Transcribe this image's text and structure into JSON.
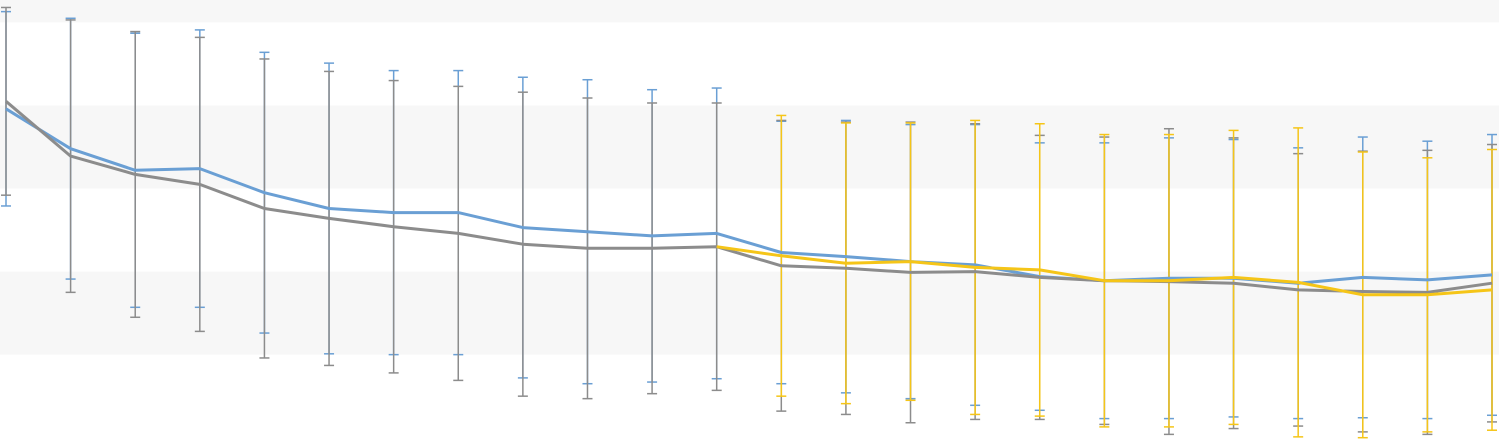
{
  "chart_data": {
    "type": "line",
    "categories": [
      null,
      null,
      null,
      null,
      null,
      null,
      null,
      null,
      null,
      null,
      null,
      null,
      null,
      null,
      null,
      null,
      null,
      null,
      null,
      null,
      null,
      null,
      null,
      null
    ],
    "ylim": [
      -1.1,
      4.27
    ],
    "yticks": [
      0,
      1,
      2,
      3,
      4
    ],
    "banded_background": true,
    "series": [
      {
        "color": "#6a9fd4",
        "values": [
          2.96,
          2.48,
          2.22,
          2.24,
          1.95,
          1.76,
          1.71,
          1.71,
          1.53,
          1.48,
          1.43,
          1.46,
          1.23,
          1.18,
          1.12,
          1.08,
          0.94,
          0.89,
          0.92,
          0.92,
          0.86,
          0.93,
          0.9,
          0.96
        ],
        "errors": [
          1.17,
          1.57,
          1.65,
          1.67,
          1.69,
          1.75,
          1.71,
          1.71,
          1.81,
          1.83,
          1.76,
          1.75,
          1.58,
          1.64,
          1.65,
          1.69,
          1.61,
          1.66,
          1.69,
          1.67,
          1.63,
          1.69,
          1.67,
          1.69
        ]
      },
      {
        "color": "#8c8c8c",
        "values": [
          3.05,
          2.39,
          2.17,
          2.05,
          1.76,
          1.64,
          1.54,
          1.46,
          1.33,
          1.28,
          1.28,
          1.3,
          1.07,
          1.04,
          0.99,
          1.0,
          0.93,
          0.89,
          0.88,
          0.86,
          0.78,
          0.76,
          0.75,
          0.86
        ],
        "errors": [
          1.13,
          1.64,
          1.72,
          1.77,
          1.8,
          1.77,
          1.76,
          1.77,
          1.83,
          1.81,
          1.75,
          1.73,
          1.75,
          1.76,
          1.81,
          1.78,
          1.71,
          1.73,
          1.84,
          1.75,
          1.64,
          1.69,
          1.71,
          1.67
        ]
      },
      {
        "color": "#f5c518",
        "values": [
          null,
          null,
          null,
          null,
          null,
          null,
          null,
          null,
          null,
          null,
          null,
          1.3,
          1.19,
          1.1,
          1.12,
          1.05,
          1.02,
          0.89,
          0.89,
          0.93,
          0.87,
          0.72,
          0.72,
          0.78
        ],
        "errors": [
          null,
          null,
          null,
          null,
          null,
          null,
          null,
          null,
          null,
          null,
          null,
          null,
          1.69,
          1.69,
          1.67,
          1.77,
          1.76,
          1.76,
          1.76,
          1.77,
          1.86,
          1.72,
          1.65,
          1.69
        ]
      }
    ]
  }
}
